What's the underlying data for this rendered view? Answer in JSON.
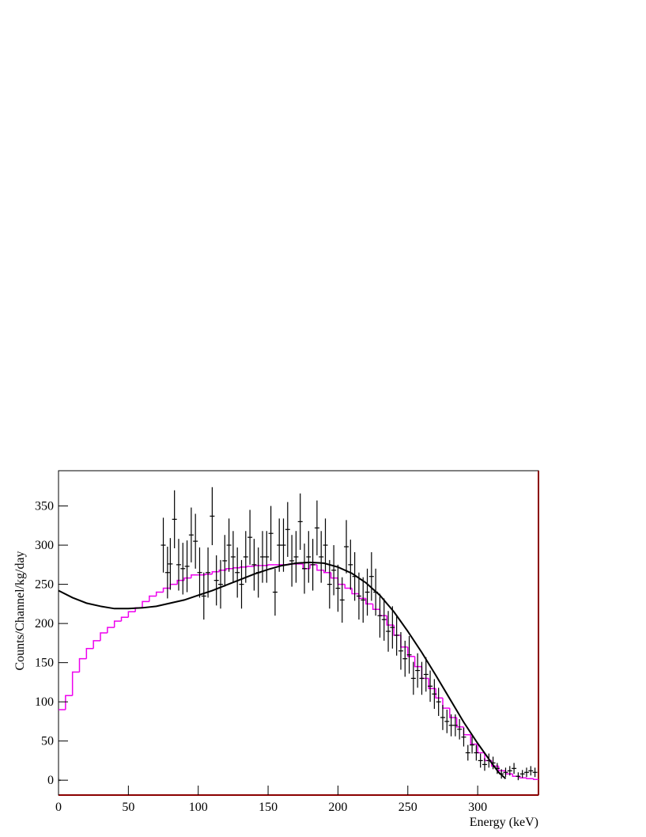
{
  "chart_data": {
    "type": "combo",
    "x_label": "Energy (keV)",
    "y_label": "Counts/Channel/kg/day",
    "xlim": [
      0,
      343.5
    ],
    "ylim": [
      -19,
      395
    ],
    "xticks": [
      0,
      50,
      100,
      150,
      200,
      250,
      300
    ],
    "yticks": [
      0,
      50,
      100,
      150,
      200,
      250,
      300,
      350
    ],
    "series": [
      {
        "type": "step",
        "color": "#ee00ee",
        "bins": [
          0,
          5,
          10,
          15,
          20,
          25,
          30,
          35,
          40,
          45,
          50,
          55,
          60,
          65,
          70,
          75,
          80,
          85,
          90,
          95,
          100,
          105,
          110,
          115,
          120,
          125,
          130,
          135,
          140,
          145,
          150,
          155,
          160,
          165,
          170,
          175,
          180,
          185,
          190,
          195,
          200,
          205,
          210,
          215,
          220,
          225,
          230,
          235,
          240,
          245,
          250,
          255,
          260,
          265,
          270,
          275,
          280,
          285,
          290,
          295,
          300,
          305,
          310,
          315,
          320,
          325,
          330,
          335,
          340,
          345
        ],
        "values": [
          90,
          108,
          138,
          155,
          168,
          178,
          188,
          195,
          203,
          208,
          215,
          220,
          228,
          235,
          240,
          245,
          250,
          255,
          258,
          262,
          262,
          263,
          266,
          268,
          270,
          271,
          272,
          273,
          274,
          274,
          275,
          275,
          275,
          276,
          276,
          270,
          275,
          268,
          265,
          258,
          250,
          245,
          238,
          232,
          225,
          218,
          210,
          198,
          185,
          170,
          158,
          145,
          130,
          117,
          105,
          92,
          80,
          68,
          58,
          46,
          35,
          25,
          18,
          12,
          8,
          5,
          3,
          2,
          1
        ]
      },
      {
        "type": "line",
        "color": "#000000",
        "x": [
          0,
          10,
          20,
          30,
          40,
          50,
          60,
          70,
          80,
          90,
          100,
          110,
          120,
          130,
          140,
          150,
          160,
          170,
          180,
          190,
          200,
          210,
          220,
          230,
          240,
          250,
          260,
          270,
          280,
          290,
          300,
          310,
          315,
          320
        ],
        "values": [
          242,
          233,
          226,
          222,
          219,
          219,
          220,
          222,
          226,
          230,
          236,
          242,
          249,
          256,
          263,
          269,
          274,
          277,
          278,
          277,
          272,
          264,
          252,
          236,
          215,
          190,
          163,
          134,
          104,
          74,
          47,
          22,
          10,
          2
        ]
      },
      {
        "type": "errorbar",
        "color": "#000000",
        "x": [
          0,
          75,
          78,
          80,
          83,
          86,
          89,
          92,
          95,
          98,
          101,
          104,
          107,
          110,
          113,
          116,
          119,
          122,
          125,
          128,
          131,
          134,
          137,
          140,
          143,
          146,
          149,
          152,
          155,
          158,
          161,
          164,
          167,
          170,
          173,
          176,
          179,
          182,
          185,
          188,
          191,
          194,
          197,
          200,
          203,
          206,
          209,
          212,
          215,
          218,
          221,
          224,
          227,
          230,
          233,
          236,
          239,
          242,
          245,
          248,
          251,
          254,
          257,
          260,
          263,
          266,
          269,
          272,
          275,
          278,
          281,
          284,
          287,
          290,
          293,
          296,
          299,
          302,
          305,
          308,
          311,
          314,
          317,
          320,
          323,
          326,
          329,
          332,
          335,
          338,
          341
        ],
        "values": [
          0,
          300,
          265,
          276,
          333,
          275,
          270,
          273,
          313,
          305,
          265,
          235,
          265,
          337,
          255,
          250,
          280,
          300,
          285,
          265,
          250,
          285,
          310,
          275,
          265,
          285,
          285,
          315,
          240,
          300,
          300,
          320,
          280,
          285,
          330,
          270,
          285,
          275,
          322,
          285,
          300,
          250,
          268,
          245,
          230,
          298,
          275,
          260,
          235,
          230,
          240,
          260,
          240,
          210,
          205,
          190,
          195,
          185,
          165,
          155,
          160,
          130,
          140,
          130,
          135,
          120,
          110,
          100,
          80,
          75,
          70,
          70,
          65,
          55,
          35,
          45,
          35,
          25,
          20,
          25,
          22,
          15,
          8,
          10,
          12,
          15,
          5,
          8,
          10,
          12,
          10
        ],
        "errors": [
          3,
          35,
          33,
          33,
          37,
          33,
          33,
          33,
          35,
          35,
          32,
          30,
          32,
          37,
          32,
          31,
          33,
          34,
          33,
          32,
          31,
          33,
          35,
          33,
          32,
          33,
          33,
          35,
          30,
          34,
          34,
          35,
          33,
          33,
          36,
          32,
          33,
          33,
          35,
          33,
          34,
          31,
          32,
          30,
          29,
          34,
          32,
          31,
          30,
          29,
          30,
          31,
          30,
          28,
          27,
          26,
          27,
          26,
          24,
          23,
          24,
          21,
          22,
          21,
          22,
          20,
          19,
          18,
          16,
          15,
          14,
          14,
          13,
          12,
          10,
          11,
          10,
          9,
          8,
          9,
          8,
          7,
          6,
          6,
          6,
          7,
          5,
          5,
          6,
          6,
          6
        ]
      }
    ]
  }
}
